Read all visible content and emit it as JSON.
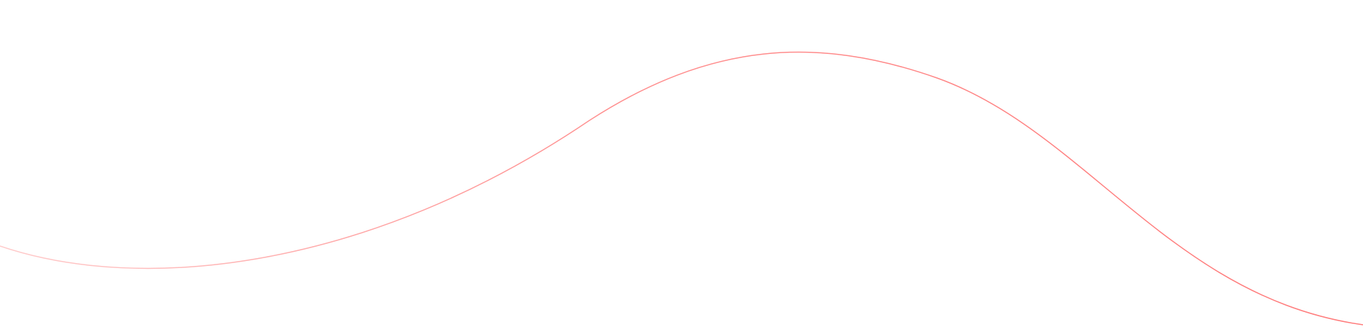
{
  "decoration": {
    "type": "wave-line",
    "colors": {
      "start": "#ffcaca",
      "end": "#ff7a7a",
      "background": "#ffffff"
    }
  }
}
